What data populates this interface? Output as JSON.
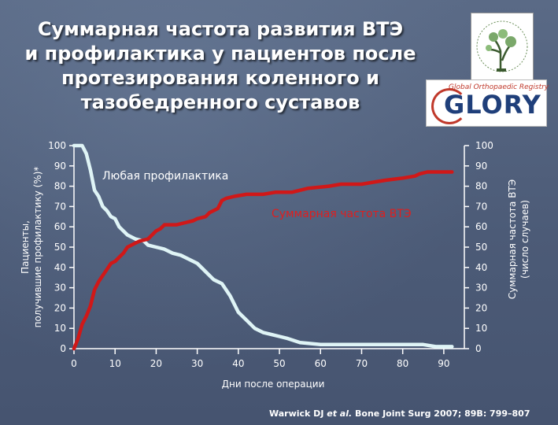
{
  "slide": {
    "title_lines": [
      "Суммарная частота развития ВТЭ",
      "и профилактика у пациентов после",
      "протезирования коленного и",
      "тазобедренного суставов"
    ],
    "logo_text": "GLORY",
    "logo_subtext": "Global Orthopaedic Registry",
    "citation_authors": "Warwick DJ ",
    "citation_etal": "et al.",
    "citation_rest": " Bone Joint Surg 2007; 89B: 799–807"
  },
  "chart_data": {
    "type": "line",
    "xlabel": "Дни после операции",
    "ylabel_left_lines": [
      "Пациенты,",
      "получившие профилактику (%)*"
    ],
    "ylabel_right_lines": [
      "Суммарная частота ВТЭ",
      "(число случаев)"
    ],
    "xlim": [
      0,
      95
    ],
    "ylim": [
      0,
      100
    ],
    "x_ticks": [
      "0",
      "10",
      "20",
      "30",
      "40",
      "50",
      "60",
      "70",
      "80",
      "90"
    ],
    "y_ticks": [
      "0",
      "10",
      "20",
      "30",
      "40",
      "50",
      "60",
      "70",
      "80",
      "90",
      "100"
    ],
    "grid": false,
    "series": [
      {
        "name": "Любая профилактика",
        "color": "#dff4f6",
        "points": [
          [
            0,
            100
          ],
          [
            2,
            100
          ],
          [
            3,
            96
          ],
          [
            4,
            88
          ],
          [
            5,
            78
          ],
          [
            6,
            75
          ],
          [
            7,
            70
          ],
          [
            8,
            68
          ],
          [
            9,
            65
          ],
          [
            10,
            64
          ],
          [
            11,
            60
          ],
          [
            12,
            58
          ],
          [
            13,
            56
          ],
          [
            14,
            55
          ],
          [
            15,
            54
          ],
          [
            17,
            53
          ],
          [
            18,
            51
          ],
          [
            20,
            50
          ],
          [
            22,
            49
          ],
          [
            24,
            47
          ],
          [
            26,
            46
          ],
          [
            28,
            44
          ],
          [
            30,
            42
          ],
          [
            32,
            38
          ],
          [
            34,
            34
          ],
          [
            36,
            32
          ],
          [
            38,
            26
          ],
          [
            40,
            18
          ],
          [
            42,
            14
          ],
          [
            44,
            10
          ],
          [
            46,
            8
          ],
          [
            48,
            7
          ],
          [
            50,
            6
          ],
          [
            52,
            5
          ],
          [
            55,
            3
          ],
          [
            60,
            2
          ],
          [
            65,
            2
          ],
          [
            70,
            2
          ],
          [
            80,
            2
          ],
          [
            85,
            2
          ],
          [
            88,
            1
          ],
          [
            92,
            1
          ]
        ]
      },
      {
        "name": "Суммарная частота ВТЭ",
        "color": "#d01818",
        "points": [
          [
            0,
            0
          ],
          [
            1,
            5
          ],
          [
            2,
            12
          ],
          [
            3,
            16
          ],
          [
            4,
            21
          ],
          [
            5,
            29
          ],
          [
            6,
            33
          ],
          [
            7,
            36
          ],
          [
            8,
            39
          ],
          [
            9,
            42
          ],
          [
            10,
            43
          ],
          [
            11,
            45
          ],
          [
            12,
            47
          ],
          [
            13,
            50
          ],
          [
            14,
            51
          ],
          [
            15,
            52
          ],
          [
            16,
            53
          ],
          [
            18,
            54
          ],
          [
            19,
            56
          ],
          [
            20,
            58
          ],
          [
            21,
            59
          ],
          [
            22,
            61
          ],
          [
            25,
            61
          ],
          [
            27,
            62
          ],
          [
            29,
            63
          ],
          [
            30,
            64
          ],
          [
            32,
            65
          ],
          [
            33,
            67
          ],
          [
            35,
            69
          ],
          [
            36,
            73
          ],
          [
            37,
            74
          ],
          [
            39,
            75
          ],
          [
            42,
            76
          ],
          [
            46,
            76
          ],
          [
            49,
            77
          ],
          [
            53,
            77
          ],
          [
            57,
            79
          ],
          [
            62,
            80
          ],
          [
            65,
            81
          ],
          [
            70,
            81
          ],
          [
            73,
            82
          ],
          [
            76,
            83
          ],
          [
            80,
            84
          ],
          [
            83,
            85
          ],
          [
            84,
            86
          ],
          [
            86,
            87
          ],
          [
            92,
            87
          ]
        ]
      }
    ]
  }
}
